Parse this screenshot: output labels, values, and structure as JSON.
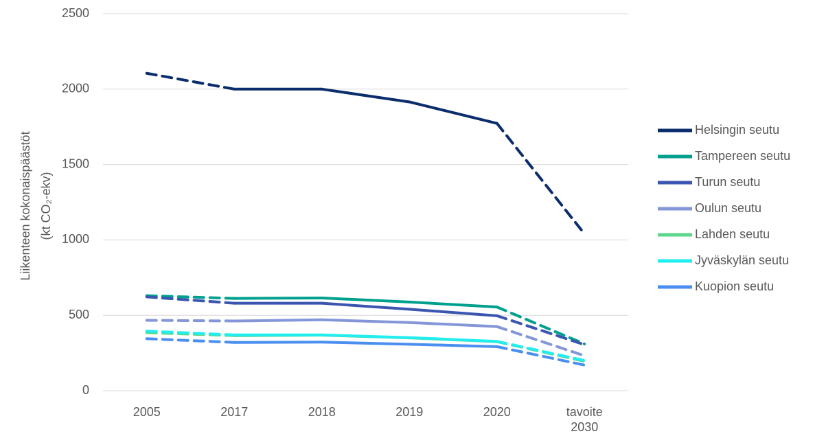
{
  "chart_data": {
    "type": "line",
    "y_axis_label": [
      "Liikenteen kokonaispäästöt",
      "(kt CO₂-ekv)"
    ],
    "categories": [
      "2005",
      "2017",
      "2018",
      "2019",
      "2020",
      "tavoite 2030"
    ],
    "segment_styles": [
      "dashed",
      "solid",
      "solid",
      "solid",
      "dashed"
    ],
    "series": [
      {
        "name": "Helsingin seutu",
        "color": "#0b2d6b",
        "values": [
          2105,
          2000,
          2000,
          1915,
          1773,
          1040
        ]
      },
      {
        "name": "Tampereen seutu",
        "color": "#00a08e",
        "values": [
          630,
          612,
          615,
          588,
          555,
          310
        ]
      },
      {
        "name": "Turun seutu",
        "color": "#3a56b0",
        "values": [
          622,
          580,
          580,
          540,
          497,
          305
        ]
      },
      {
        "name": "Oulun seutu",
        "color": "#8496d8",
        "values": [
          467,
          462,
          470,
          452,
          425,
          232
        ]
      },
      {
        "name": "Lahden seutu",
        "color": "#5cd68a",
        "values": [
          385,
          365,
          368,
          350,
          325,
          195
        ]
      },
      {
        "name": "Jyväskylän seutu",
        "color": "#22eef0",
        "values": [
          395,
          370,
          370,
          352,
          327,
          200
        ]
      },
      {
        "name": "Kuopion seutu",
        "color": "#4a8ff0",
        "values": [
          345,
          320,
          322,
          308,
          292,
          170
        ]
      }
    ],
    "ylim": [
      0,
      2500
    ],
    "yticks": [
      0,
      500,
      1000,
      1500,
      2000,
      2500
    ],
    "grid": true,
    "legend": "right"
  }
}
